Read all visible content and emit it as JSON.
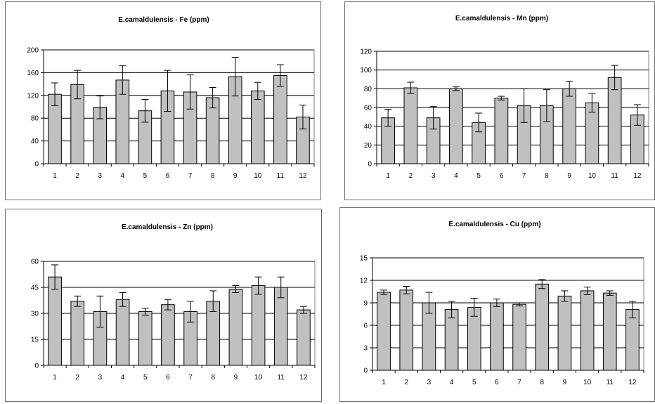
{
  "style": {
    "bar_fill": "#c0c0c0",
    "bar_stroke": "#000000",
    "grid": "#000000",
    "plot_border": "#808080"
  },
  "chart_data": [
    {
      "type": "bar",
      "title": "E.camaldulensis - Fe (ppm)",
      "categories": [
        "1",
        "2",
        "3",
        "4",
        "5",
        "6",
        "7",
        "8",
        "9",
        "10",
        "11",
        "12"
      ],
      "values": [
        122,
        139,
        99,
        147,
        93,
        128,
        126,
        116,
        153,
        128,
        155,
        82
      ],
      "errors": [
        20,
        25,
        20,
        25,
        20,
        36,
        30,
        18,
        34,
        15,
        19,
        21
      ],
      "ylim": [
        0,
        200
      ],
      "yticks": [
        0,
        40,
        80,
        120,
        160,
        200
      ],
      "grid": true,
      "legend": "none"
    },
    {
      "type": "bar",
      "title": "E.camaldulensis - Mn (ppm)",
      "categories": [
        "1",
        "2",
        "3",
        "4",
        "5",
        "6",
        "7",
        "8",
        "9",
        "10",
        "11",
        "12"
      ],
      "values": [
        49,
        81,
        49,
        80,
        44,
        70,
        62,
        62,
        80,
        65,
        92,
        52
      ],
      "errors": [
        9,
        6,
        12,
        2,
        10,
        2,
        18,
        17,
        8,
        10,
        13,
        11
      ],
      "ylim": [
        0,
        120
      ],
      "yticks": [
        0,
        20,
        40,
        60,
        80,
        100,
        120
      ],
      "grid": true,
      "legend": "none"
    },
    {
      "type": "bar",
      "title": "E.camaldulensis - Zn (ppm)",
      "categories": [
        "1",
        "2",
        "3",
        "4",
        "5",
        "6",
        "7",
        "8",
        "9",
        "10",
        "11",
        "12"
      ],
      "values": [
        51,
        37,
        31,
        38,
        31,
        35,
        31,
        37,
        44,
        46,
        45,
        32
      ],
      "errors": [
        7,
        3,
        9,
        4,
        2,
        3,
        6,
        6,
        2,
        5,
        6,
        2
      ],
      "ylim": [
        0,
        60
      ],
      "yticks": [
        0,
        15,
        30,
        45,
        60
      ],
      "grid": true,
      "legend": "none"
    },
    {
      "type": "bar",
      "title": "E.camaldulensis - Cu (ppm)",
      "categories": [
        "1",
        "2",
        "3",
        "4",
        "5",
        "6",
        "7",
        "8",
        "9",
        "10",
        "11",
        "12"
      ],
      "values": [
        10.4,
        10.7,
        9.0,
        8.1,
        8.4,
        9.0,
        8.8,
        11.5,
        9.9,
        10.6,
        10.3,
        8.1
      ],
      "errors": [
        0.3,
        0.5,
        1.4,
        1.1,
        1.2,
        0.5,
        0.2,
        0.6,
        0.7,
        0.5,
        0.3,
        1.1
      ],
      "ylim": [
        0,
        15
      ],
      "yticks": [
        0,
        3,
        6,
        9,
        12,
        15
      ],
      "grid": true,
      "legend": "none"
    }
  ]
}
